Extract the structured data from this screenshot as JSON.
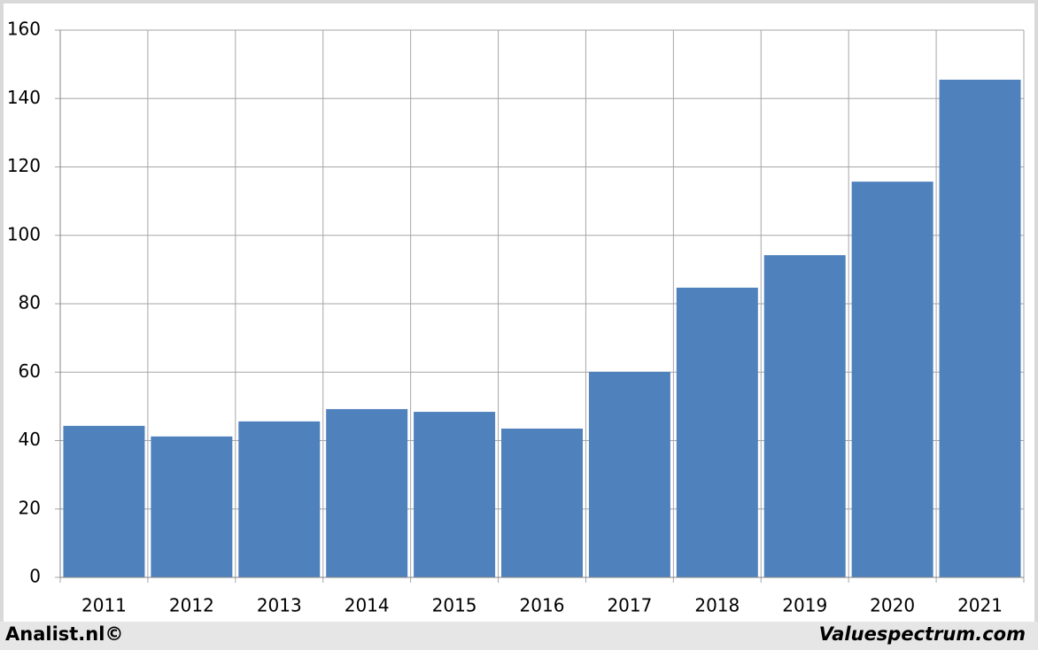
{
  "chart_data": {
    "type": "bar",
    "categories": [
      "2011",
      "2012",
      "2013",
      "2014",
      "2015",
      "2016",
      "2017",
      "2018",
      "2019",
      "2020",
      "2021"
    ],
    "values": [
      44.3,
      41.2,
      45.6,
      49.2,
      48.4,
      43.5,
      60.1,
      84.7,
      94.2,
      115.7,
      145.5
    ],
    "color": "#4f81bd",
    "ylim": [
      0,
      160
    ],
    "yticks": [
      0,
      20,
      40,
      60,
      80,
      100,
      120,
      140,
      160
    ],
    "grid": true,
    "credits": [
      "Analist.nl©",
      "Valuespectrum.com"
    ]
  }
}
